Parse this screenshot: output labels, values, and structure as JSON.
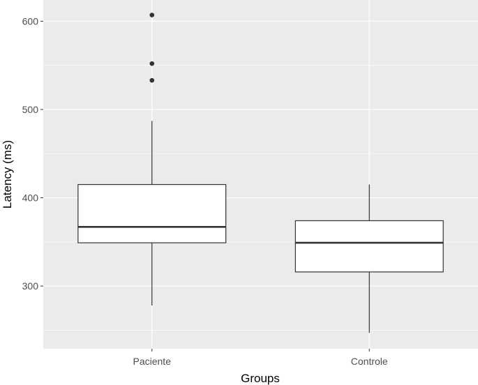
{
  "chart_data": {
    "type": "boxplot",
    "xlabel": "Groups",
    "ylabel": "Latency (ms)",
    "categories": [
      "Paciente",
      "Controle"
    ],
    "ylim": [
      229,
      624
    ],
    "y_ticks": [
      300,
      400,
      500,
      600
    ],
    "grid": true,
    "boxes": [
      {
        "category": "Paciente",
        "whisker_low": 278,
        "q1": 349,
        "median": 367,
        "q3": 415,
        "whisker_high": 487,
        "outliers": [
          533,
          552,
          607
        ]
      },
      {
        "category": "Controle",
        "whisker_low": 247,
        "q1": 316,
        "median": 349,
        "q3": 374,
        "whisker_high": 415,
        "outliers": []
      }
    ],
    "colors": {
      "panel_background": "#ebebeb",
      "grid_major": "#ffffff",
      "box_fill": "#ffffff",
      "box_stroke": "#333333",
      "outlier": "#333333"
    }
  }
}
